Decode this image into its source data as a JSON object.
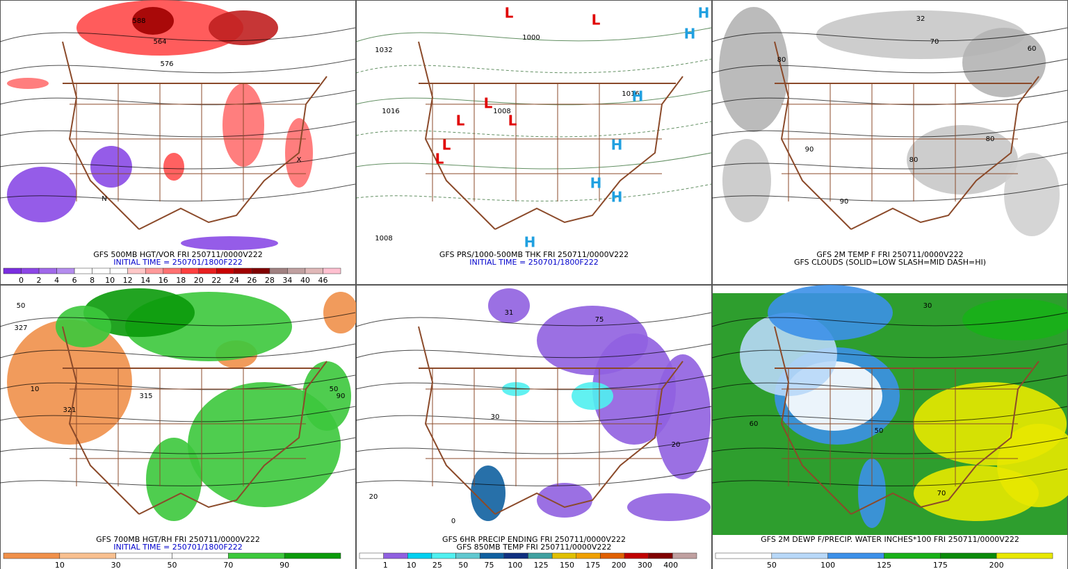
{
  "panels": [
    {
      "background": "#ffffff",
      "caption": [
        {
          "text": "GFS 500MB HGT/VOR FRI 250711/0000V222",
          "color": "#000000"
        },
        {
          "text": "INITIAL TIME = 250701/1800F222",
          "color": "#0000cc"
        }
      ],
      "colorbar": {
        "labels": [
          0,
          2,
          4,
          6,
          8,
          10,
          12,
          14,
          16,
          18,
          20,
          22,
          24,
          26,
          28,
          34,
          40,
          46
        ],
        "colors": [
          "#7a2ee0",
          "#8c46e6",
          "#a068ea",
          "#b48cee",
          "#ffffff",
          "#ffffff",
          "#ffffff",
          "#ffc8c8",
          "#ff9a9a",
          "#ff7070",
          "#ff4040",
          "#e82020",
          "#c80000",
          "#a00000",
          "#800000",
          "#a08080",
          "#c0a0a0",
          "#e0b8b8",
          "#ffc0d0"
        ]
      },
      "map_labels": [
        "564",
        "576",
        "588",
        "N",
        "X"
      ]
    },
    {
      "background": "#ffffff",
      "caption": [
        {
          "text": "GFS PRS/1000-500MB THK FRI 250711/0000V222",
          "color": "#000000"
        },
        {
          "text": "INITIAL TIME = 250701/1800F222",
          "color": "#0000cc"
        }
      ],
      "map_labels": [
        "1032",
        "1016",
        "1008",
        "1000",
        "1008",
        "1016"
      ],
      "lows": [
        "L",
        "L",
        "L",
        "L",
        "L",
        "L",
        "L"
      ],
      "highs": [
        "H",
        "H",
        "H",
        "H",
        "H",
        "H",
        "H"
      ]
    },
    {
      "background": "#ffffff",
      "caption": [
        {
          "text": "GFS 2M TEMP F FRI 250711/0000V222",
          "color": "#000000"
        },
        {
          "text": "GFS CLOUDS (SOLID=LOW SLASH=MID DASH=HI)",
          "color": "#000000"
        }
      ],
      "map_labels": [
        "80",
        "90",
        "80",
        "90",
        "80",
        "70",
        "60",
        "32"
      ]
    },
    {
      "background": "#ffffff",
      "caption": [
        {
          "text": "GFS 700MB HGT/RH FRI 250711/0000V222",
          "color": "#000000"
        },
        {
          "text": "INITIAL TIME = 250701/1800F222",
          "color": "#0000cc"
        }
      ],
      "colorbar": {
        "labels": [
          10,
          30,
          50,
          70,
          90
        ],
        "colors": [
          "#f0904a",
          "#f8c090",
          "#ffffff",
          "#ffffff",
          "#3cc83c",
          "#0a9a0a"
        ]
      },
      "map_labels": [
        "50",
        "327",
        "10",
        "321",
        "315",
        "50",
        "90"
      ]
    },
    {
      "background": "#ffffff",
      "caption": [
        {
          "text": "GFS 6HR PRECIP ENDING FRI 250711/0000V222",
          "color": "#000000"
        },
        {
          "text": "GFS 850MB TEMP FRI 250711/0000V222",
          "color": "#000000"
        }
      ],
      "colorbar": {
        "labels": [
          1,
          10,
          25,
          50,
          75,
          100,
          125,
          150,
          175,
          200,
          300,
          400
        ],
        "colors": [
          "#ffffff",
          "#9060e0",
          "#00d0f0",
          "#50f0f0",
          "#60c8d0",
          "#1060a0",
          "#103080",
          "#40a0a0",
          "#e0c000",
          "#f0a000",
          "#e06000",
          "#c00000",
          "#800000",
          "#c0a0a0"
        ]
      },
      "map_labels": [
        "31",
        "75",
        "20",
        "30",
        "20",
        "0"
      ]
    },
    {
      "background": "#2e9e2e",
      "caption": [
        {
          "text": "GFS 2M DEWP F/PRECIP. WATER INCHES*100 FRI 250711/0000V222",
          "color": "#000000"
        }
      ],
      "colorbar": {
        "labels": [
          50,
          100,
          125,
          175,
          200
        ],
        "colors": [
          "#ffffff",
          "#b8d8f8",
          "#3c90e8",
          "#18b018",
          "#0a8a0a",
          "#e8e800"
        ]
      },
      "map_labels": [
        "30",
        "50",
        "60",
        "70"
      ]
    }
  ]
}
